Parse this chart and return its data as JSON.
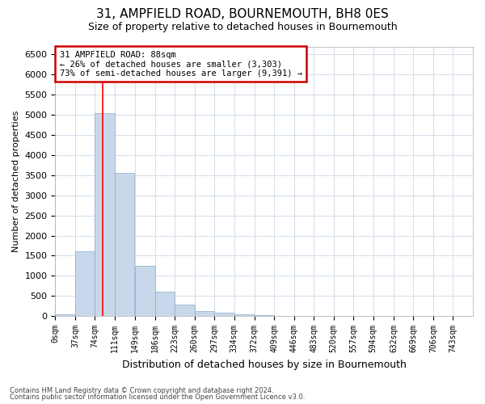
{
  "title": "31, AMPFIELD ROAD, BOURNEMOUTH, BH8 0ES",
  "subtitle": "Size of property relative to detached houses in Bournemouth",
  "xlabel": "Distribution of detached houses by size in Bournemouth",
  "ylabel": "Number of detached properties",
  "footer1": "Contains HM Land Registry data © Crown copyright and database right 2024.",
  "footer2": "Contains public sector information licensed under the Open Government Licence v3.0.",
  "bin_labels": [
    "0sqm",
    "37sqm",
    "74sqm",
    "111sqm",
    "149sqm",
    "186sqm",
    "223sqm",
    "260sqm",
    "297sqm",
    "334sqm",
    "372sqm",
    "409sqm",
    "446sqm",
    "483sqm",
    "520sqm",
    "557sqm",
    "594sqm",
    "632sqm",
    "669sqm",
    "706sqm",
    "743sqm"
  ],
  "bin_edges": [
    0,
    37,
    74,
    111,
    149,
    186,
    223,
    260,
    297,
    334,
    372,
    409,
    446,
    483,
    520,
    557,
    594,
    632,
    669,
    706,
    743
  ],
  "bar_heights": [
    50,
    1620,
    5050,
    3550,
    1250,
    600,
    275,
    125,
    75,
    50,
    30,
    10,
    5,
    3,
    2,
    1,
    1,
    0,
    0,
    0
  ],
  "bar_color": "#c8d8ea",
  "bar_edgecolor": "#8baac8",
  "ylim_max": 6700,
  "yticks": [
    0,
    500,
    1000,
    1500,
    2000,
    2500,
    3000,
    3500,
    4000,
    4500,
    5000,
    5500,
    6000,
    6500
  ],
  "red_line_x": 88,
  "annotation_line1": "31 AMPFIELD ROAD: 88sqm",
  "annotation_line2": "← 26% of detached houses are smaller (3,303)",
  "annotation_line3": "73% of semi-detached houses are larger (9,391) →",
  "annotation_box_fc": "#ffffff",
  "annotation_box_ec": "#cc0000",
  "grid_color": "#ccd8e8",
  "bg_color": "#ffffff",
  "title_fontsize": 11,
  "subtitle_fontsize": 9,
  "ylabel_fontsize": 8,
  "xlabel_fontsize": 9,
  "ytick_fontsize": 8,
  "xtick_fontsize": 7,
  "annotation_fontsize": 7.5,
  "footer_fontsize": 6
}
